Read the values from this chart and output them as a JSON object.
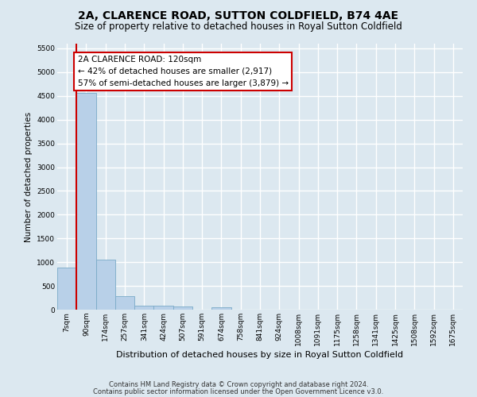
{
  "title": "2A, CLARENCE ROAD, SUTTON COLDFIELD, B74 4AE",
  "subtitle": "Size of property relative to detached houses in Royal Sutton Coldfield",
  "xlabel": "Distribution of detached houses by size in Royal Sutton Coldfield",
  "ylabel": "Number of detached properties",
  "footnote1": "Contains HM Land Registry data © Crown copyright and database right 2024.",
  "footnote2": "Contains public sector information licensed under the Open Government Licence v3.0.",
  "categories": [
    "7sqm",
    "90sqm",
    "174sqm",
    "257sqm",
    "341sqm",
    "424sqm",
    "507sqm",
    "591sqm",
    "674sqm",
    "758sqm",
    "841sqm",
    "924sqm",
    "1008sqm",
    "1091sqm",
    "1175sqm",
    "1258sqm",
    "1341sqm",
    "1425sqm",
    "1508sqm",
    "1592sqm",
    "1675sqm"
  ],
  "values": [
    880,
    4560,
    1060,
    290,
    90,
    80,
    60,
    0,
    50,
    0,
    0,
    0,
    0,
    0,
    0,
    0,
    0,
    0,
    0,
    0,
    0
  ],
  "bar_color": "#b8d0e8",
  "bar_edge_color": "#7aaac8",
  "vline_color": "#cc0000",
  "vline_x": 0.5,
  "annotation_line1": "2A CLARENCE ROAD: 120sqm",
  "annotation_line2": "← 42% of detached houses are smaller (2,917)",
  "annotation_line3": "57% of semi-detached houses are larger (3,879) →",
  "annotation_box_edgecolor": "#cc0000",
  "annotation_bg_color": "white",
  "ylim": [
    0,
    5600
  ],
  "yticks": [
    0,
    500,
    1000,
    1500,
    2000,
    2500,
    3000,
    3500,
    4000,
    4500,
    5000,
    5500
  ],
  "bg_color": "#dce8f0",
  "grid_color": "white",
  "title_fontsize": 10,
  "subtitle_fontsize": 8.5,
  "tick_fontsize": 6.5,
  "annotation_fontsize": 7.5,
  "xlabel_fontsize": 8,
  "ylabel_fontsize": 7.5
}
